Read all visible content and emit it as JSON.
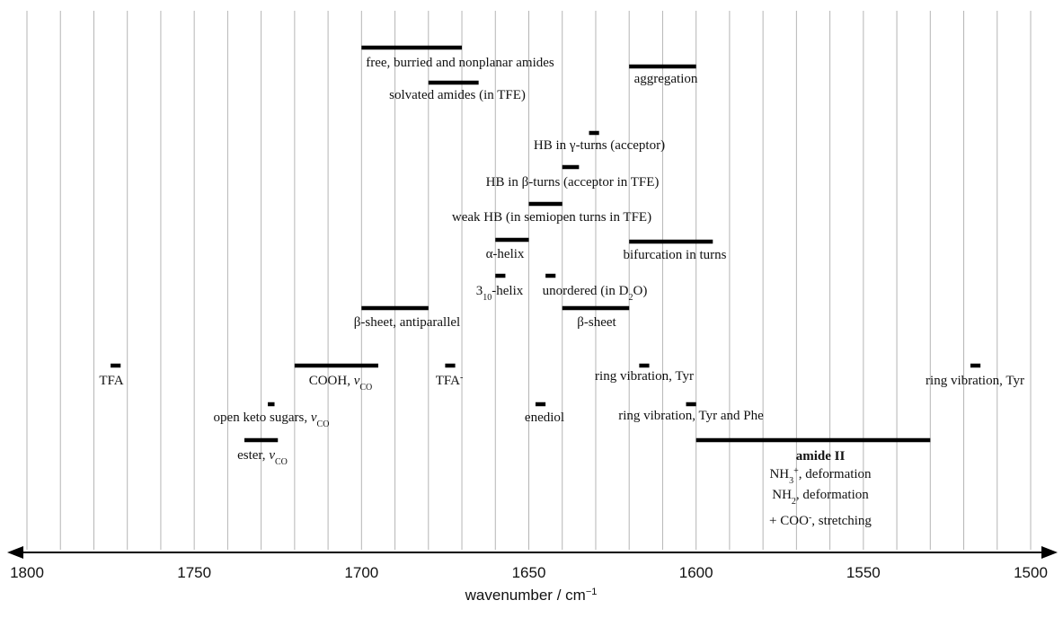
{
  "chart_data": {
    "type": "range-bars",
    "xlabel": "wavenumber / cm",
    "xlabel_sup": "−1",
    "xlim": [
      1800,
      1500
    ],
    "x_direction": "reversed",
    "ticks": [
      "1800",
      "1750",
      "1700",
      "1650",
      "1600",
      "1550",
      "1500"
    ],
    "tick_values": [
      1800,
      1750,
      1700,
      1650,
      1600,
      1550,
      1500
    ],
    "grid_step": 10,
    "grid": true,
    "bands": [
      {
        "id": "free-amides",
        "from": 1700,
        "to": 1670,
        "label": [
          {
            "t": "free, burried and nonplanar amides"
          }
        ]
      },
      {
        "id": "aggregation",
        "from": 1620,
        "to": 1600,
        "label": [
          {
            "t": "aggregation"
          }
        ]
      },
      {
        "id": "solvated-amides",
        "from": 1680,
        "to": 1665,
        "label": [
          {
            "t": "solvated amides (in TFE)"
          }
        ]
      },
      {
        "id": "hb-gamma-turns",
        "from": 1632,
        "to": 1629,
        "label": [
          {
            "t": "HB in "
          },
          {
            "t": "γ",
            "sym": true
          },
          {
            "t": "-turns (acceptor)"
          }
        ]
      },
      {
        "id": "hb-beta-turns",
        "from": 1640,
        "to": 1635,
        "label": [
          {
            "t": "HB in "
          },
          {
            "t": "β",
            "sym": true
          },
          {
            "t": "-turns (acceptor in TFE)"
          }
        ]
      },
      {
        "id": "weak-hb",
        "from": 1650,
        "to": 1640,
        "label": [
          {
            "t": "weak HB (in semiopen turns in TFE)"
          }
        ]
      },
      {
        "id": "alpha-helix",
        "from": 1660,
        "to": 1650,
        "label": [
          {
            "t": "α",
            "sym": true
          },
          {
            "t": "-helix"
          }
        ]
      },
      {
        "id": "bifurcation",
        "from": 1620,
        "to": 1595,
        "label": [
          {
            "t": "bifurcation in turns"
          }
        ]
      },
      {
        "id": "helix-310",
        "from": 1660,
        "to": 1657,
        "label": [
          {
            "t": "3"
          },
          {
            "t": "10",
            "sub": true
          },
          {
            "t": "-helix"
          }
        ]
      },
      {
        "id": "unordered",
        "from": 1645,
        "to": 1642,
        "label": [
          {
            "t": "unordered (in D"
          },
          {
            "t": "2",
            "sub": true
          },
          {
            "t": "O)"
          }
        ]
      },
      {
        "id": "beta-sheet-anti",
        "from": 1700,
        "to": 1680,
        "label": [
          {
            "t": "β",
            "sym": true
          },
          {
            "t": "-sheet, antiparallel"
          }
        ]
      },
      {
        "id": "beta-sheet",
        "from": 1640,
        "to": 1620,
        "label": [
          {
            "t": "β",
            "sym": true
          },
          {
            "t": "-sheet"
          }
        ]
      },
      {
        "id": "tfa-1",
        "from": 1775,
        "to": 1772,
        "label": [
          {
            "t": "TFA"
          }
        ]
      },
      {
        "id": "cooh",
        "from": 1720,
        "to": 1695,
        "label": [
          {
            "t": "COOH, "
          },
          {
            "t": "ν",
            "it": true
          },
          {
            "t": "CO",
            "sub": true
          }
        ]
      },
      {
        "id": "tfa-anion",
        "from": 1675,
        "to": 1672,
        "label": [
          {
            "t": "TFA"
          },
          {
            "t": "-",
            "sup": true
          }
        ]
      },
      {
        "id": "ring-tyr-1",
        "from": 1617,
        "to": 1614,
        "label": [
          {
            "t": "ring vibration, Tyr"
          }
        ]
      },
      {
        "id": "ring-tyr-2",
        "from": 1518,
        "to": 1515,
        "label": [
          {
            "t": "ring vibration, Tyr"
          }
        ]
      },
      {
        "id": "open-keto",
        "from": 1728,
        "to": 1726,
        "label": [
          {
            "t": "open keto sugars, "
          },
          {
            "t": "ν",
            "it": true
          },
          {
            "t": "CO",
            "sub": true
          }
        ]
      },
      {
        "id": "enediol",
        "from": 1648,
        "to": 1645,
        "label": [
          {
            "t": "enediol"
          }
        ]
      },
      {
        "id": "ring-tyr-phe",
        "from": 1603,
        "to": 1600,
        "label": [
          {
            "t": "ring vibration, Tyr and Phe"
          }
        ]
      },
      {
        "id": "ester",
        "from": 1735,
        "to": 1725,
        "label": [
          {
            "t": "ester, "
          },
          {
            "t": "ν",
            "it": true
          },
          {
            "t": "CO",
            "sub": true
          }
        ]
      },
      {
        "id": "amide-ii",
        "from": 1600,
        "to": 1530,
        "label": [
          {
            "t": "amide II",
            "bold": true
          }
        ]
      }
    ],
    "extra_labels": [
      {
        "id": "nh3-deformation",
        "parts": [
          {
            "t": "NH"
          },
          {
            "t": "3",
            "sub": true
          },
          {
            "t": "+",
            "sup": true
          },
          {
            "t": ", deformation"
          }
        ]
      },
      {
        "id": "nh2-deformation",
        "parts": [
          {
            "t": "NH"
          },
          {
            "t": "2",
            "sub": true
          },
          {
            "t": ", deformation"
          }
        ]
      },
      {
        "id": "coo-stretching",
        "parts": [
          {
            "t": "+ COO"
          },
          {
            "t": "-",
            "sup": true
          },
          {
            "t": ", stretching"
          }
        ]
      }
    ]
  }
}
